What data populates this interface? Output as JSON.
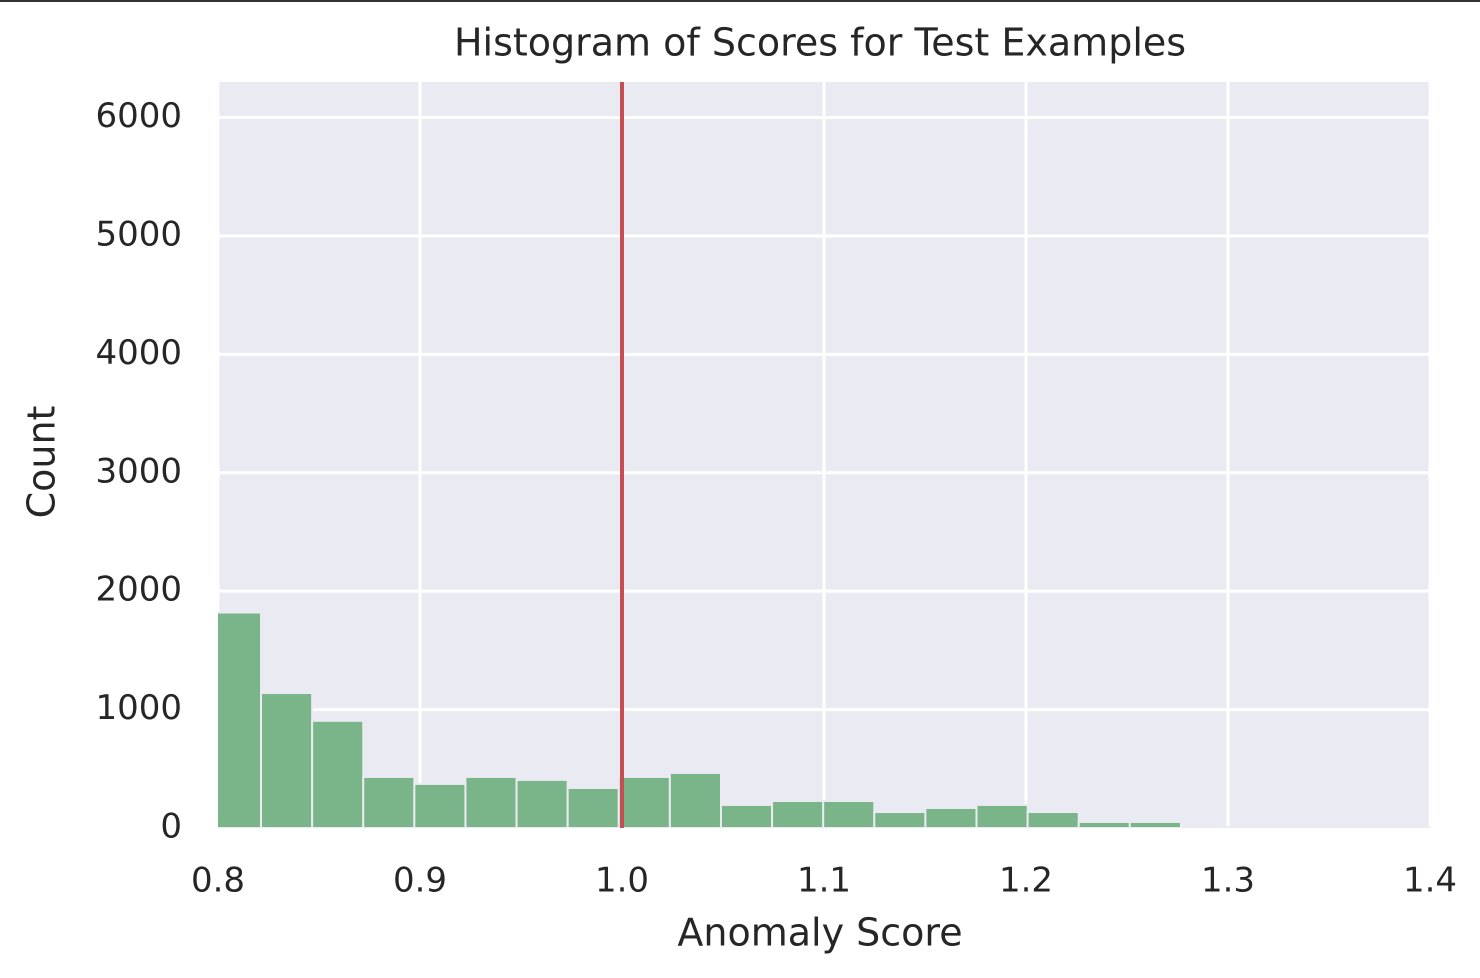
{
  "chart_data": {
    "type": "histogram",
    "title": "Histogram of Scores for Test Examples",
    "x_label": "Anomaly Score",
    "y_label": "Count",
    "bins": [
      0.796,
      0.8213,
      0.8466,
      0.8719,
      0.8972,
      0.9225,
      0.9478,
      0.9731,
      0.9984,
      1.0237,
      1.049,
      1.0743,
      1.0996,
      1.1249,
      1.1502,
      1.1755,
      1.2008,
      1.2261,
      1.2514,
      1.2767,
      1.302,
      1.3273,
      1.3526,
      1.3779,
      1.4032
    ],
    "values": [
      1820,
      1140,
      905,
      431,
      372,
      431,
      406,
      338,
      431,
      465,
      195,
      228,
      228,
      135,
      169,
      195,
      135,
      51,
      51,
      10,
      10,
      10,
      5,
      5
    ],
    "color": "#7ab58a",
    "vlines": [
      {
        "x": 1,
        "color": "#c44e52"
      }
    ],
    "xlim": [
      0.8,
      1.4
    ],
    "xticks": [
      0.8,
      0.9,
      {
        "value": 1,
        "label": "1.0"
      },
      1.1,
      1.2,
      1.3,
      1.4
    ],
    "ylim": [
      0,
      6300
    ],
    "yticks": [
      0,
      1000,
      2000,
      3000,
      4000,
      5000,
      6000
    ],
    "grid": true
  }
}
